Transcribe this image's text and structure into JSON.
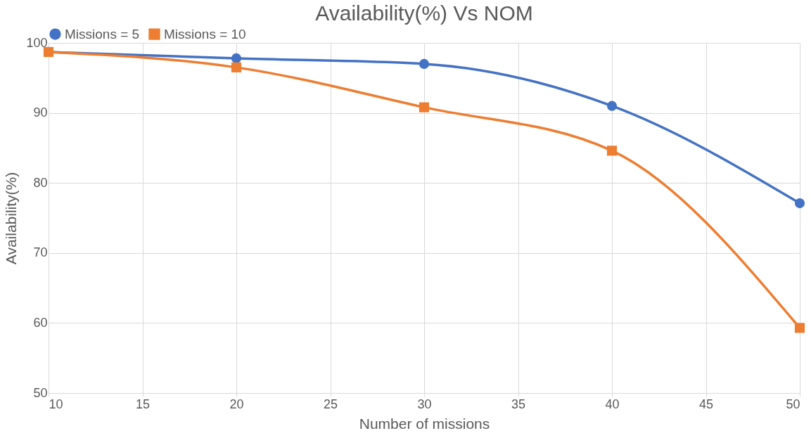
{
  "chart_data": {
    "type": "line",
    "title": "Availability(%) Vs NOM",
    "xlabel": "Number of missions",
    "ylabel": "Availability(%)",
    "x": [
      10,
      20,
      30,
      40,
      50
    ],
    "series": [
      {
        "name": "Missions = 5",
        "color": "#4472c4",
        "marker": "circle",
        "values": [
          98.7,
          97.8,
          97.0,
          91.0,
          77.1
        ]
      },
      {
        "name": "Missions = 10",
        "color": "#ed7d31",
        "marker": "square",
        "values": [
          98.7,
          96.5,
          90.8,
          84.6,
          59.3
        ]
      }
    ],
    "xlim": [
      10,
      50
    ],
    "xticks": [
      10,
      15,
      20,
      25,
      30,
      35,
      40,
      45,
      50
    ],
    "ylim": [
      50,
      100
    ],
    "yticks": [
      50,
      60,
      70,
      80,
      90,
      100
    ],
    "grid": true,
    "legend": "top",
    "line_style": "solid"
  }
}
